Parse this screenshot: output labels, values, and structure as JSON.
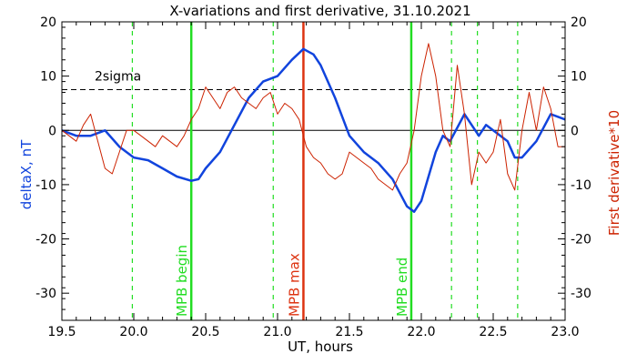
{
  "chart_data": {
    "type": "line",
    "title": "X-variations and first derivative, 31.10.2021",
    "xlabel": "UT, hours",
    "ylabel_left": "deltaX, nT",
    "ylabel_right": "First derivative*10",
    "xlim": [
      19.5,
      23.0
    ],
    "ylim": [
      -35,
      20
    ],
    "x_ticks": [
      "19.5",
      "20.0",
      "20.5",
      "21.0",
      "21.5",
      "22.0",
      "22.5",
      "23.0"
    ],
    "y_ticks": [
      "20",
      "10",
      "0",
      "-10",
      "-20",
      "-30"
    ],
    "y_tick_values": [
      20,
      10,
      0,
      -10,
      -20,
      -30
    ],
    "threshold": {
      "label": "2sigma",
      "value": 7.5
    },
    "zero_line": 0,
    "vertical_markers": [
      {
        "x": 20.4,
        "label": "MPB begin",
        "color": "#22dd22",
        "style": "solid"
      },
      {
        "x": 21.18,
        "label": "MPB max",
        "color": "#dd3311",
        "style": "solid"
      },
      {
        "x": 21.93,
        "label": "MPB end",
        "color": "#22dd22",
        "style": "solid"
      }
    ],
    "dashed_markers": [
      19.99,
      20.97,
      22.21,
      22.39,
      22.67
    ],
    "series": [
      {
        "role": "deltaX",
        "color": "#1144dd",
        "x": [
          19.5,
          19.6,
          19.7,
          19.8,
          19.9,
          20.0,
          20.1,
          20.2,
          20.3,
          20.4,
          20.45,
          20.5,
          20.6,
          20.7,
          20.8,
          20.9,
          21.0,
          21.1,
          21.18,
          21.25,
          21.3,
          21.4,
          21.5,
          21.6,
          21.7,
          21.8,
          21.9,
          21.95,
          22.0,
          22.1,
          22.15,
          22.2,
          22.3,
          22.35,
          22.4,
          22.45,
          22.5,
          22.6,
          22.65,
          22.7,
          22.8,
          22.9,
          23.0
        ],
        "y": [
          0,
          -1,
          -1,
          0,
          -3,
          -5,
          -5.5,
          -7,
          -8.5,
          -9.3,
          -9,
          -7,
          -4,
          1,
          6,
          9,
          10,
          13,
          15,
          14,
          12,
          6,
          -1,
          -4,
          -6,
          -9,
          -14,
          -15,
          -13,
          -4,
          -1,
          -2,
          3,
          1,
          -1,
          1,
          0,
          -2,
          -5,
          -5,
          -2,
          3,
          2
        ]
      },
      {
        "role": "First derivative*10",
        "color": "#cc2200",
        "x": [
          19.5,
          19.55,
          19.6,
          19.65,
          19.7,
          19.75,
          19.8,
          19.85,
          19.9,
          19.95,
          20.0,
          20.05,
          20.1,
          20.15,
          20.2,
          20.25,
          20.3,
          20.35,
          20.4,
          20.45,
          20.5,
          20.55,
          20.6,
          20.65,
          20.7,
          20.75,
          20.8,
          20.85,
          20.9,
          20.95,
          21.0,
          21.05,
          21.1,
          21.15,
          21.2,
          21.25,
          21.3,
          21.35,
          21.4,
          21.45,
          21.5,
          21.55,
          21.6,
          21.65,
          21.7,
          21.75,
          21.8,
          21.85,
          21.9,
          21.95,
          22.0,
          22.05,
          22.1,
          22.15,
          22.2,
          22.25,
          22.3,
          22.35,
          22.4,
          22.45,
          22.5,
          22.55,
          22.6,
          22.65,
          22.7,
          22.75,
          22.8,
          22.85,
          22.9,
          22.95,
          23.0
        ],
        "y": [
          0,
          -1,
          -2,
          1,
          3,
          -2,
          -7,
          -8,
          -4,
          0,
          0,
          -1,
          -2,
          -3,
          -1,
          -2,
          -3,
          -1,
          2,
          4,
          8,
          6,
          4,
          7,
          8,
          6,
          5,
          4,
          6,
          7,
          3,
          5,
          4,
          2,
          -3,
          -5,
          -6,
          -8,
          -9,
          -8,
          -4,
          -5,
          -6,
          -7,
          -9,
          -10,
          -11,
          -8,
          -6,
          0,
          10,
          16,
          10,
          0,
          -3,
          12,
          3,
          -10,
          -4,
          -6,
          -4,
          2,
          -8,
          -11,
          0,
          7,
          0,
          8,
          4,
          -3,
          -3
        ]
      }
    ]
  }
}
